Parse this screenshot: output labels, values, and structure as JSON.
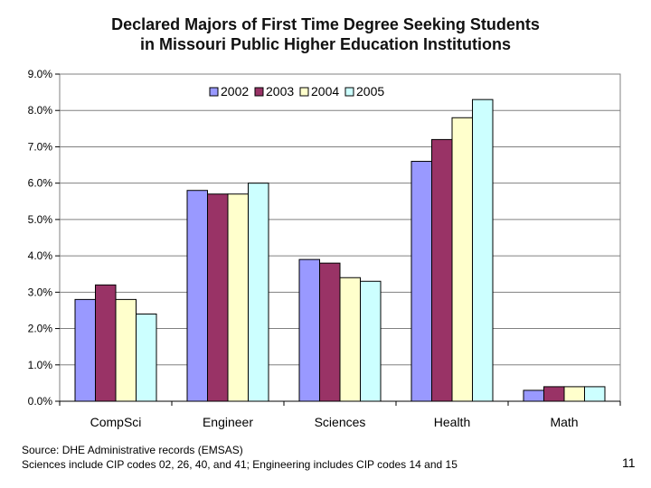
{
  "chart_data": {
    "type": "bar",
    "title": "Declared Majors of First Time Degree Seeking Students",
    "subtitle": "in Missouri Public Higher Education Institutions",
    "categories": [
      "CompSci",
      "Engineer",
      "Sciences",
      "Health",
      "Math"
    ],
    "series": [
      {
        "name": "2002",
        "color": "#9999ff",
        "values": [
          2.8,
          5.8,
          3.9,
          6.6,
          0.3
        ]
      },
      {
        "name": "2003",
        "color": "#993366",
        "values": [
          3.2,
          5.7,
          3.8,
          7.2,
          0.4
        ]
      },
      {
        "name": "2004",
        "color": "#ffffcc",
        "values": [
          2.8,
          5.7,
          3.4,
          7.8,
          0.4
        ]
      },
      {
        "name": "2005",
        "color": "#ccffff",
        "values": [
          2.4,
          6.0,
          3.3,
          8.3,
          0.4
        ]
      }
    ],
    "y_ticks": [
      "0.0%",
      "1.0%",
      "2.0%",
      "3.0%",
      "4.0%",
      "5.0%",
      "6.0%",
      "7.0%",
      "8.0%",
      "9.0%"
    ],
    "ylim": [
      0,
      9
    ],
    "xlabel": "",
    "ylabel": "",
    "grid": true,
    "legend_position": "top-center"
  },
  "footer": {
    "source": "Source: DHE Administrative records (EMSAS)",
    "note": "Sciences include CIP codes 02, 26, 40, and 41; Engineering includes CIP codes 14 and 15"
  },
  "slide_number": "11"
}
